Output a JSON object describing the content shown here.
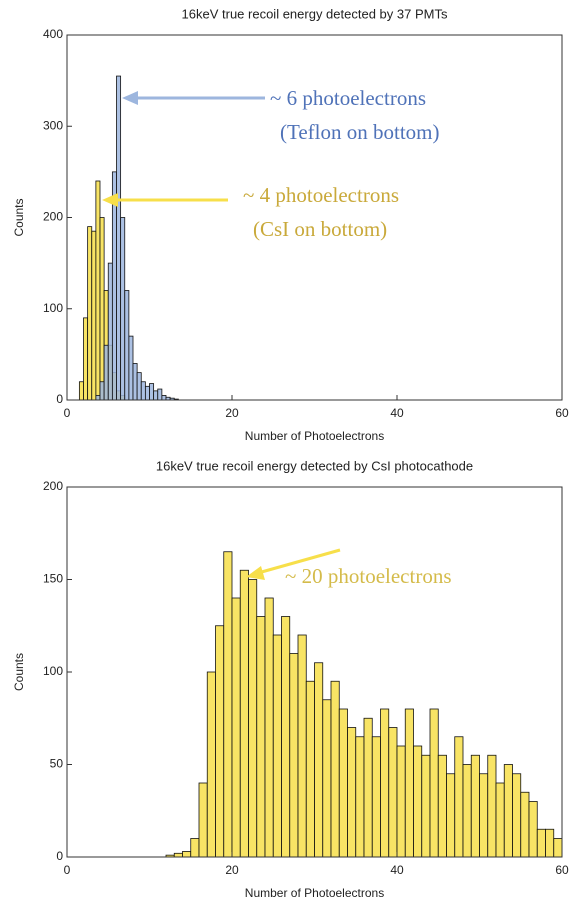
{
  "chart_data": [
    {
      "type": "histogram",
      "title": "16keV true recoil energy detected by 37 PMTs",
      "x_label": "Number of Photoelectrons",
      "y_label": "Counts",
      "xlim": [
        0,
        60
      ],
      "ylim": [
        0,
        400
      ],
      "xticks": [
        0,
        20,
        40,
        60
      ],
      "yticks": [
        0,
        100,
        200,
        300,
        400
      ],
      "bins": [
        1,
        1.5,
        2,
        2.5,
        3,
        3.5,
        4,
        4.5,
        5,
        5.5,
        6,
        6.5,
        7,
        7.5,
        8,
        8.5,
        9,
        9.5,
        10,
        10.5,
        11,
        11.5,
        12,
        12.5,
        13,
        13.5,
        14
      ],
      "series": [
        {
          "color": "#f7df4a",
          "values": [
            0,
            20,
            90,
            190,
            185,
            240,
            200,
            120,
            60,
            30,
            10,
            5,
            0,
            0,
            0,
            0,
            0,
            0,
            0,
            0,
            0,
            0,
            0,
            0,
            0,
            0
          ]
        },
        {
          "color": "#9db6de",
          "values": [
            0,
            0,
            0,
            0,
            0,
            5,
            20,
            60,
            150,
            250,
            355,
            200,
            120,
            70,
            40,
            30,
            20,
            15,
            18,
            10,
            12,
            5,
            3,
            2,
            1,
            0
          ]
        }
      ],
      "annotations": [
        {
          "lines": [
            "~ 6 photoelectrons",
            "(Teflon on bottom)"
          ],
          "color": "#4f72b8"
        },
        {
          "lines": [
            "~ 4 photoelectrons",
            "(CsI on bottom)"
          ],
          "color": "#c9a93a"
        }
      ]
    },
    {
      "type": "histogram",
      "title": "16keV true recoil energy detected by CsI photocathode",
      "x_label": "Number of Photoelectrons",
      "y_label": "Counts",
      "xlim": [
        0,
        60
      ],
      "ylim": [
        0,
        200
      ],
      "xticks": [
        0,
        20,
        40,
        60
      ],
      "yticks": [
        0,
        50,
        100,
        150,
        200
      ],
      "bins": [
        12,
        13,
        14,
        15,
        16,
        17,
        18,
        19,
        20,
        21,
        22,
        23,
        24,
        25,
        26,
        27,
        28,
        29,
        30,
        31,
        32,
        33,
        34,
        35,
        36,
        37,
        38,
        39,
        40,
        41,
        42,
        43,
        44,
        45,
        46,
        47,
        48,
        49,
        50,
        51,
        52,
        53,
        54,
        55,
        56,
        57,
        58,
        59,
        60
      ],
      "series": [
        {
          "color": "#f7df4a",
          "values": [
            1,
            2,
            3,
            10,
            40,
            100,
            125,
            165,
            140,
            155,
            150,
            130,
            140,
            120,
            130,
            110,
            120,
            95,
            105,
            85,
            95,
            80,
            70,
            65,
            75,
            65,
            80,
            70,
            60,
            80,
            60,
            55,
            80,
            55,
            45,
            65,
            50,
            55,
            45,
            55,
            40,
            50,
            45,
            35,
            30,
            15,
            15,
            10
          ]
        }
      ],
      "annotations": [
        {
          "lines": [
            "~ 20 photoelectrons"
          ],
          "color": "#d4bb4a"
        }
      ]
    }
  ]
}
